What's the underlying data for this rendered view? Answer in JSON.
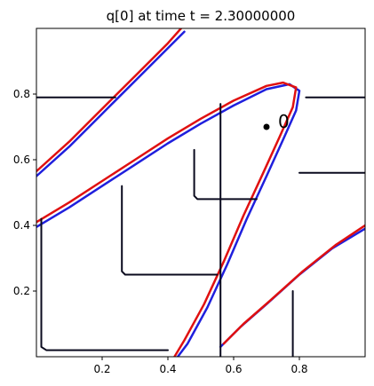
{
  "chart_data": {
    "type": "line",
    "title": "q[0] at time t =      2.30000000",
    "xlim": [
      0.0,
      1.0
    ],
    "ylim": [
      0.0,
      1.0
    ],
    "xticks": [
      {
        "value": 0.2,
        "label": "0.2"
      },
      {
        "value": 0.4,
        "label": "0.4"
      },
      {
        "value": 0.6,
        "label": "0.6"
      },
      {
        "value": 0.8,
        "label": "0.8"
      }
    ],
    "yticks": [
      {
        "value": 0.2,
        "label": "0.2"
      },
      {
        "value": 0.4,
        "label": "0.4"
      },
      {
        "value": 0.6,
        "label": "0.6"
      },
      {
        "value": 0.8,
        "label": "0.8"
      }
    ],
    "grid": false,
    "point": {
      "x": 0.7,
      "y": 0.7,
      "label": "0",
      "color": "#000000"
    },
    "series": [
      {
        "color": "#1f1fdd",
        "points": [
          [
            0.0,
            0.395
          ],
          [
            0.1,
            0.455
          ],
          [
            0.2,
            0.52
          ],
          [
            0.3,
            0.585
          ],
          [
            0.4,
            0.65
          ],
          [
            0.5,
            0.71
          ],
          [
            0.6,
            0.765
          ],
          [
            0.7,
            0.815
          ],
          [
            0.77,
            0.83
          ],
          [
            0.8,
            0.81
          ],
          [
            0.79,
            0.75
          ],
          [
            0.75,
            0.66
          ],
          [
            0.7,
            0.55
          ],
          [
            0.64,
            0.42
          ],
          [
            0.58,
            0.28
          ],
          [
            0.52,
            0.15
          ],
          [
            0.46,
            0.04
          ],
          [
            0.43,
            0.0
          ]
        ]
      },
      {
        "color": "#e01010",
        "points": [
          [
            0.0,
            0.41
          ],
          [
            0.1,
            0.47
          ],
          [
            0.2,
            0.535
          ],
          [
            0.3,
            0.6
          ],
          [
            0.4,
            0.665
          ],
          [
            0.5,
            0.725
          ],
          [
            0.6,
            0.78
          ],
          [
            0.7,
            0.825
          ],
          [
            0.75,
            0.835
          ],
          [
            0.79,
            0.82
          ],
          [
            0.78,
            0.76
          ],
          [
            0.74,
            0.67
          ],
          [
            0.69,
            0.56
          ],
          [
            0.63,
            0.43
          ],
          [
            0.57,
            0.29
          ],
          [
            0.51,
            0.16
          ],
          [
            0.45,
            0.05
          ],
          [
            0.42,
            0.0
          ]
        ]
      },
      {
        "color": "#1f1fdd",
        "points": [
          [
            0.0,
            0.55
          ],
          [
            0.1,
            0.64
          ],
          [
            0.2,
            0.74
          ],
          [
            0.3,
            0.84
          ],
          [
            0.4,
            0.94
          ],
          [
            0.45,
            0.99
          ]
        ]
      },
      {
        "color": "#e01010",
        "points": [
          [
            0.0,
            0.565
          ],
          [
            0.1,
            0.655
          ],
          [
            0.2,
            0.755
          ],
          [
            0.3,
            0.855
          ],
          [
            0.4,
            0.955
          ],
          [
            0.44,
            1.0
          ]
        ]
      },
      {
        "color": "#1f1fdd",
        "points": [
          [
            0.56,
            0.03
          ],
          [
            0.62,
            0.09
          ],
          [
            0.7,
            0.16
          ],
          [
            0.8,
            0.25
          ],
          [
            0.9,
            0.33
          ],
          [
            1.0,
            0.39
          ]
        ]
      },
      {
        "color": "#e01010",
        "points": [
          [
            0.57,
            0.04
          ],
          [
            0.63,
            0.1
          ],
          [
            0.71,
            0.17
          ],
          [
            0.81,
            0.26
          ],
          [
            0.91,
            0.34
          ],
          [
            1.0,
            0.4
          ]
        ]
      },
      {
        "color": "#0a0a1e",
        "points": [
          [
            0.015,
            0.42
          ],
          [
            0.015,
            0.03
          ],
          [
            0.03,
            0.02
          ],
          [
            0.4,
            0.02
          ]
        ]
      },
      {
        "color": "#0a0a1e",
        "points": [
          [
            0.26,
            0.52
          ],
          [
            0.26,
            0.26
          ],
          [
            0.27,
            0.25
          ],
          [
            0.55,
            0.25
          ]
        ]
      },
      {
        "color": "#0a0a1e",
        "points": [
          [
            0.48,
            0.63
          ],
          [
            0.48,
            0.49
          ],
          [
            0.49,
            0.48
          ],
          [
            0.67,
            0.48
          ]
        ]
      },
      {
        "color": "#0a0a1e",
        "points": [
          [
            0.56,
            0.0
          ],
          [
            0.56,
            0.77
          ]
        ]
      },
      {
        "color": "#0a0a1e",
        "points": [
          [
            0.0,
            0.79
          ],
          [
            0.24,
            0.79
          ]
        ]
      },
      {
        "color": "#0a0a1e",
        "points": [
          [
            0.82,
            0.79
          ],
          [
            1.0,
            0.79
          ]
        ]
      },
      {
        "color": "#0a0a1e",
        "points": [
          [
            0.78,
            0.0
          ],
          [
            0.78,
            0.2
          ]
        ]
      },
      {
        "color": "#0a0a1e",
        "points": [
          [
            0.8,
            0.56
          ],
          [
            1.0,
            0.56
          ]
        ]
      }
    ]
  }
}
